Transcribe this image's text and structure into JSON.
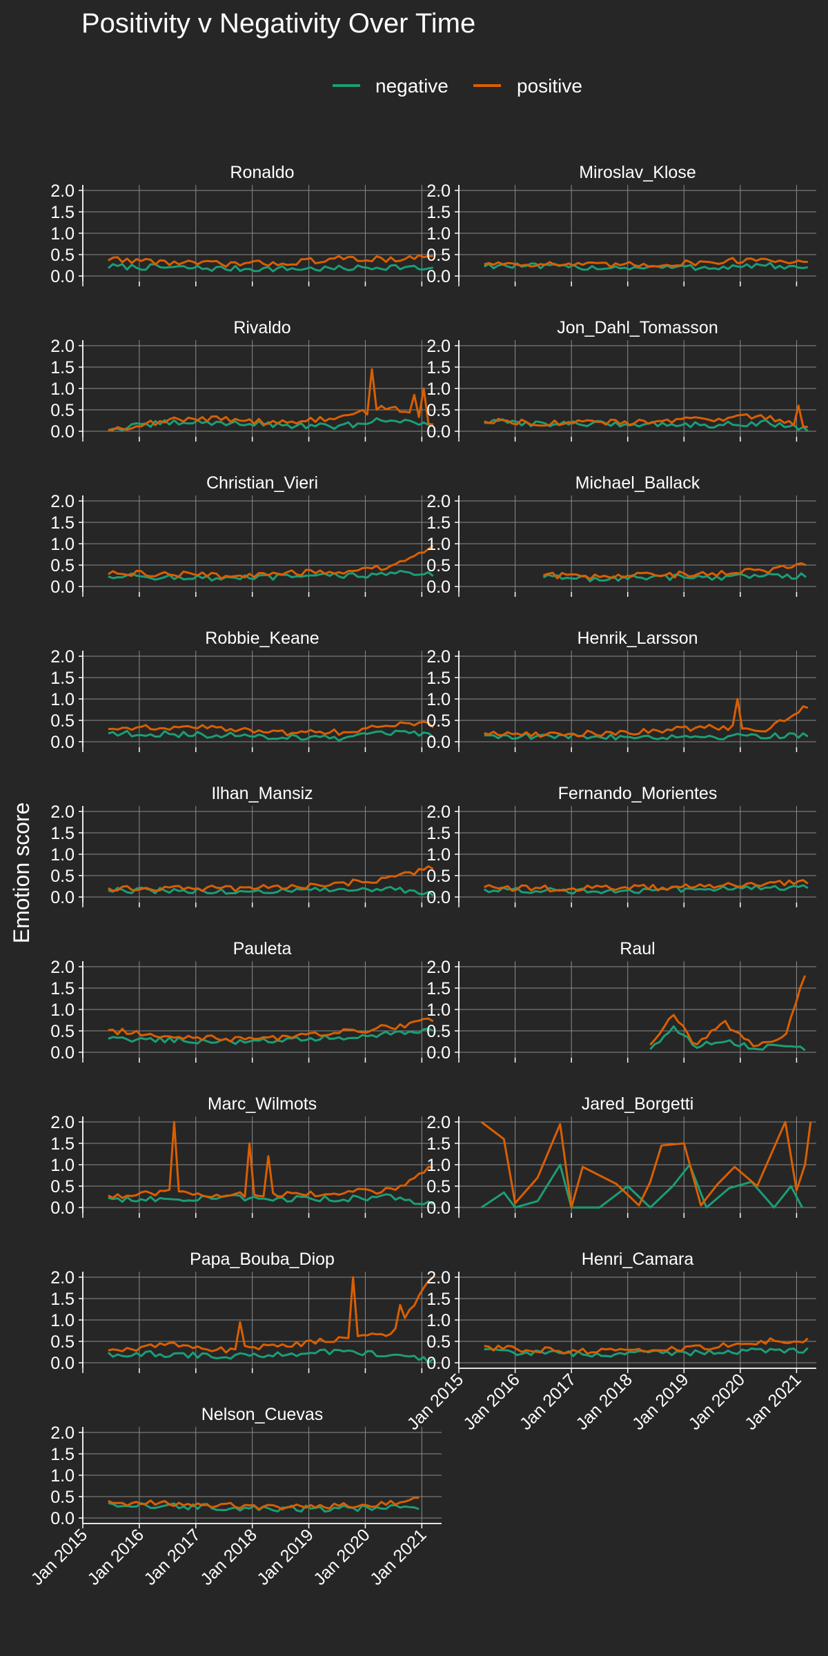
{
  "chart_data": {
    "type": "line",
    "title": "Positivity v Negativity Over Time",
    "ylabel": "Emotion score",
    "xlabel": "",
    "ylim": [
      0,
      2
    ],
    "y_ticks": [
      "0.0",
      "0.5",
      "1.0",
      "1.5",
      "2.0"
    ],
    "x_ticks": [
      "Jan 2015",
      "Jan 2016",
      "Jan 2017",
      "Jan 2018",
      "Jan 2019",
      "Jan 2020",
      "Jan 2021"
    ],
    "grid": true,
    "legend": {
      "placement": "top",
      "entries": [
        {
          "name": "negative",
          "color": "#1b9e77"
        },
        {
          "name": "positive",
          "color": "#d95f02"
        }
      ]
    },
    "time_range": {
      "start": "2015-06",
      "end": "2021-03",
      "step": "month"
    },
    "facets": [
      {
        "name": "Ronaldo",
        "positive": [
          [
            2015.5,
            0.4
          ],
          [
            2016.5,
            0.32
          ],
          [
            2017.5,
            0.28
          ],
          [
            2018.5,
            0.3
          ],
          [
            2019.5,
            0.4
          ],
          [
            2020.5,
            0.4
          ],
          [
            2021.2,
            0.45
          ]
        ],
        "negative": [
          [
            2015.5,
            0.22
          ],
          [
            2016.5,
            0.2
          ],
          [
            2017.5,
            0.17
          ],
          [
            2018.5,
            0.17
          ],
          [
            2019.5,
            0.17
          ],
          [
            2020.5,
            0.22
          ],
          [
            2021.2,
            0.15
          ]
        ]
      },
      {
        "name": "Miroslav_Klose",
        "positive": [
          [
            2015.5,
            0.3
          ],
          [
            2016.5,
            0.28
          ],
          [
            2017.5,
            0.25
          ],
          [
            2018.5,
            0.27
          ],
          [
            2019.5,
            0.33
          ],
          [
            2020.5,
            0.4
          ],
          [
            2021.2,
            0.3
          ]
        ],
        "negative": [
          [
            2015.5,
            0.25
          ],
          [
            2016.5,
            0.22
          ],
          [
            2017.5,
            0.2
          ],
          [
            2018.5,
            0.2
          ],
          [
            2019.5,
            0.2
          ],
          [
            2020.5,
            0.25
          ],
          [
            2021.2,
            0.15
          ]
        ]
      },
      {
        "name": "Rivaldo",
        "positive": [
          [
            2015.5,
            0.05
          ],
          [
            2016.5,
            0.25
          ],
          [
            2017.5,
            0.3
          ],
          [
            2018.5,
            0.2
          ],
          [
            2019.5,
            0.3
          ],
          [
            2020.5,
            0.6
          ],
          [
            2021.2,
            0.1
          ]
        ],
        "negative": [
          [
            2015.5,
            0.05
          ],
          [
            2016.5,
            0.2
          ],
          [
            2017.5,
            0.2
          ],
          [
            2018.5,
            0.15
          ],
          [
            2019.5,
            0.1
          ],
          [
            2020.5,
            0.3
          ],
          [
            2021.2,
            0.1
          ]
        ],
        "spikes": {
          "positive": [
            [
              2020.15,
              1.45
            ],
            [
              2020.85,
              0.85
            ],
            [
              2021.05,
              1.0
            ]
          ]
        }
      },
      {
        "name": "Jon_Dahl_Tomasson",
        "positive": [
          [
            2015.5,
            0.25
          ],
          [
            2016.5,
            0.2
          ],
          [
            2017.5,
            0.2
          ],
          [
            2018.5,
            0.22
          ],
          [
            2019.5,
            0.3
          ],
          [
            2020.5,
            0.35
          ],
          [
            2021.2,
            0.05
          ]
        ],
        "negative": [
          [
            2015.5,
            0.22
          ],
          [
            2016.5,
            0.18
          ],
          [
            2017.5,
            0.17
          ],
          [
            2018.5,
            0.17
          ],
          [
            2019.5,
            0.15
          ],
          [
            2020.5,
            0.2
          ],
          [
            2021.2,
            0.05
          ]
        ],
        "spikes": {
          "positive": [
            [
              2021.05,
              0.6
            ]
          ]
        }
      },
      {
        "name": "Christian_Vieri",
        "positive": [
          [
            2015.5,
            0.3
          ],
          [
            2016.5,
            0.3
          ],
          [
            2017.5,
            0.25
          ],
          [
            2018.5,
            0.3
          ],
          [
            2019.5,
            0.35
          ],
          [
            2020.5,
            0.45
          ],
          [
            2021.2,
            0.9
          ]
        ],
        "negative": [
          [
            2015.5,
            0.25
          ],
          [
            2016.5,
            0.22
          ],
          [
            2017.5,
            0.18
          ],
          [
            2018.5,
            0.22
          ],
          [
            2019.5,
            0.25
          ],
          [
            2020.5,
            0.3
          ],
          [
            2021.2,
            0.3
          ]
        ]
      },
      {
        "name": "Michael_Ballack",
        "start": 2016.5,
        "positive": [
          [
            2016.5,
            0.27
          ],
          [
            2017.5,
            0.22
          ],
          [
            2018.5,
            0.27
          ],
          [
            2019.5,
            0.3
          ],
          [
            2020.5,
            0.38
          ],
          [
            2021.2,
            0.55
          ]
        ],
        "negative": [
          [
            2016.5,
            0.22
          ],
          [
            2017.5,
            0.18
          ],
          [
            2018.5,
            0.22
          ],
          [
            2019.5,
            0.22
          ],
          [
            2020.5,
            0.25
          ],
          [
            2021.2,
            0.25
          ]
        ]
      },
      {
        "name": "Robbie_Keane",
        "positive": [
          [
            2015.5,
            0.3
          ],
          [
            2016.5,
            0.35
          ],
          [
            2017.5,
            0.3
          ],
          [
            2018.5,
            0.22
          ],
          [
            2019.5,
            0.22
          ],
          [
            2020.5,
            0.4
          ],
          [
            2021.2,
            0.4
          ]
        ],
        "negative": [
          [
            2015.5,
            0.2
          ],
          [
            2016.5,
            0.18
          ],
          [
            2017.5,
            0.15
          ],
          [
            2018.5,
            0.12
          ],
          [
            2019.5,
            0.08
          ],
          [
            2020.5,
            0.2
          ],
          [
            2021.2,
            0.15
          ]
        ]
      },
      {
        "name": "Henrik_Larsson",
        "positive": [
          [
            2015.5,
            0.2
          ],
          [
            2016.5,
            0.18
          ],
          [
            2017.5,
            0.2
          ],
          [
            2018.5,
            0.25
          ],
          [
            2019.5,
            0.35
          ],
          [
            2020.5,
            0.3
          ],
          [
            2021.2,
            0.85
          ]
        ],
        "negative": [
          [
            2015.5,
            0.15
          ],
          [
            2016.5,
            0.12
          ],
          [
            2017.5,
            0.12
          ],
          [
            2018.5,
            0.12
          ],
          [
            2019.5,
            0.12
          ],
          [
            2020.5,
            0.15
          ],
          [
            2021.2,
            0.15
          ]
        ],
        "spikes": {
          "positive": [
            [
              2019.95,
              1.0
            ]
          ]
        }
      },
      {
        "name": "Ilhan_Mansiz",
        "positive": [
          [
            2015.5,
            0.2
          ],
          [
            2016.5,
            0.2
          ],
          [
            2017.5,
            0.2
          ],
          [
            2018.5,
            0.22
          ],
          [
            2019.5,
            0.3
          ],
          [
            2020.5,
            0.45
          ],
          [
            2021.2,
            0.7
          ]
        ],
        "negative": [
          [
            2015.5,
            0.15
          ],
          [
            2016.5,
            0.15
          ],
          [
            2017.5,
            0.12
          ],
          [
            2018.5,
            0.15
          ],
          [
            2019.5,
            0.15
          ],
          [
            2020.5,
            0.2
          ],
          [
            2021.2,
            0.05
          ]
        ]
      },
      {
        "name": "Fernando_Morientes",
        "positive": [
          [
            2015.5,
            0.22
          ],
          [
            2016.5,
            0.2
          ],
          [
            2017.5,
            0.2
          ],
          [
            2018.5,
            0.22
          ],
          [
            2019.5,
            0.27
          ],
          [
            2020.5,
            0.3
          ],
          [
            2021.2,
            0.35
          ]
        ],
        "negative": [
          [
            2015.5,
            0.17
          ],
          [
            2016.5,
            0.15
          ],
          [
            2017.5,
            0.15
          ],
          [
            2018.5,
            0.17
          ],
          [
            2019.5,
            0.2
          ],
          [
            2020.5,
            0.22
          ],
          [
            2021.2,
            0.22
          ]
        ]
      },
      {
        "name": "Pauleta",
        "positive": [
          [
            2015.5,
            0.5
          ],
          [
            2016.5,
            0.4
          ],
          [
            2017.5,
            0.3
          ],
          [
            2018.5,
            0.35
          ],
          [
            2019.5,
            0.45
          ],
          [
            2020.5,
            0.6
          ],
          [
            2021.2,
            0.75
          ]
        ],
        "negative": [
          [
            2015.5,
            0.3
          ],
          [
            2016.5,
            0.3
          ],
          [
            2017.5,
            0.25
          ],
          [
            2018.5,
            0.28
          ],
          [
            2019.5,
            0.35
          ],
          [
            2020.5,
            0.45
          ],
          [
            2021.2,
            0.5
          ]
        ]
      },
      {
        "name": "Raul",
        "start": 2018.4,
        "positive": [
          [
            2018.4,
            0.15
          ],
          [
            2018.8,
            0.85
          ],
          [
            2019.2,
            0.2
          ],
          [
            2019.7,
            0.7
          ],
          [
            2020.3,
            0.15
          ],
          [
            2020.8,
            0.4
          ],
          [
            2021.2,
            2.0
          ]
        ],
        "negative": [
          [
            2018.4,
            0.05
          ],
          [
            2018.8,
            0.6
          ],
          [
            2019.2,
            0.15
          ],
          [
            2019.7,
            0.3
          ],
          [
            2020.3,
            0.1
          ],
          [
            2020.8,
            0.2
          ],
          [
            2021.2,
            0.0
          ]
        ]
      },
      {
        "name": "Marc_Wilmots",
        "positive": [
          [
            2015.5,
            0.25
          ],
          [
            2016.5,
            0.35
          ],
          [
            2017.5,
            0.3
          ],
          [
            2018.5,
            0.3
          ],
          [
            2019.5,
            0.35
          ],
          [
            2020.5,
            0.4
          ],
          [
            2021.2,
            0.95
          ]
        ],
        "negative": [
          [
            2015.5,
            0.2
          ],
          [
            2016.5,
            0.2
          ],
          [
            2017.5,
            0.25
          ],
          [
            2018.5,
            0.2
          ],
          [
            2019.5,
            0.2
          ],
          [
            2020.5,
            0.25
          ],
          [
            2021.2,
            0.05
          ]
        ],
        "spikes": {
          "positive": [
            [
              2016.65,
              2.0
            ],
            [
              2017.95,
              1.5
            ],
            [
              2018.25,
              1.2
            ]
          ]
        }
      },
      {
        "name": "Jared_Borgetti",
        "sparse": true,
        "positive": [
          [
            2015.4,
            2.0
          ],
          [
            2015.8,
            1.6
          ],
          [
            2016.0,
            0.1
          ],
          [
            2016.4,
            0.7
          ],
          [
            2016.8,
            1.95
          ],
          [
            2017.0,
            0.0
          ],
          [
            2017.2,
            0.95
          ],
          [
            2017.8,
            0.55
          ],
          [
            2018.2,
            0.05
          ],
          [
            2018.4,
            0.6
          ],
          [
            2018.6,
            1.45
          ],
          [
            2019.0,
            1.5
          ],
          [
            2019.3,
            0.05
          ],
          [
            2019.6,
            0.55
          ],
          [
            2019.9,
            0.95
          ],
          [
            2020.3,
            0.5
          ],
          [
            2020.6,
            1.4
          ],
          [
            2020.8,
            2.0
          ],
          [
            2021.0,
            0.4
          ],
          [
            2021.15,
            1.0
          ],
          [
            2021.25,
            2.0
          ]
        ],
        "negative": [
          [
            2015.4,
            0.0
          ],
          [
            2015.8,
            0.35
          ],
          [
            2016.0,
            0.0
          ],
          [
            2016.4,
            0.15
          ],
          [
            2016.8,
            1.0
          ],
          [
            2017.0,
            0.0
          ],
          [
            2017.5,
            0.0
          ],
          [
            2018.0,
            0.5
          ],
          [
            2018.4,
            0.0
          ],
          [
            2018.8,
            0.5
          ],
          [
            2019.1,
            1.0
          ],
          [
            2019.4,
            0.0
          ],
          [
            2019.8,
            0.45
          ],
          [
            2020.2,
            0.6
          ],
          [
            2020.6,
            0.0
          ],
          [
            2020.9,
            0.5
          ],
          [
            2021.1,
            0.0
          ]
        ]
      },
      {
        "name": "Papa_Bouba_Diop",
        "positive": [
          [
            2015.5,
            0.25
          ],
          [
            2016.5,
            0.45
          ],
          [
            2017.5,
            0.3
          ],
          [
            2018.5,
            0.4
          ],
          [
            2019.5,
            0.55
          ],
          [
            2020.5,
            0.7
          ],
          [
            2021.2,
            2.0
          ]
        ],
        "negative": [
          [
            2015.5,
            0.2
          ],
          [
            2016.5,
            0.2
          ],
          [
            2017.5,
            0.15
          ],
          [
            2018.5,
            0.2
          ],
          [
            2019.5,
            0.25
          ],
          [
            2020.5,
            0.2
          ],
          [
            2021.2,
            0.05
          ]
        ],
        "spikes": {
          "positive": [
            [
              2019.75,
              2.0
            ],
            [
              2020.6,
              1.35
            ],
            [
              2017.8,
              0.95
            ]
          ]
        }
      },
      {
        "name": "Henri_Camara",
        "positive": [
          [
            2015.5,
            0.35
          ],
          [
            2016.5,
            0.3
          ],
          [
            2017.5,
            0.27
          ],
          [
            2018.5,
            0.3
          ],
          [
            2019.5,
            0.38
          ],
          [
            2020.5,
            0.5
          ],
          [
            2021.2,
            0.55
          ]
        ],
        "negative": [
          [
            2015.5,
            0.27
          ],
          [
            2016.5,
            0.22
          ],
          [
            2017.5,
            0.2
          ],
          [
            2018.5,
            0.22
          ],
          [
            2019.5,
            0.25
          ],
          [
            2020.5,
            0.3
          ],
          [
            2021.2,
            0.3
          ]
        ]
      },
      {
        "name": "Nelson_Cuevas",
        "positive": [
          [
            2015.5,
            0.35
          ],
          [
            2016.5,
            0.35
          ],
          [
            2017.5,
            0.3
          ],
          [
            2018.5,
            0.25
          ],
          [
            2019.5,
            0.28
          ],
          [
            2020.5,
            0.35
          ],
          [
            2021.0,
            0.45
          ]
        ],
        "negative": [
          [
            2015.5,
            0.3
          ],
          [
            2016.5,
            0.28
          ],
          [
            2017.5,
            0.25
          ],
          [
            2018.5,
            0.22
          ],
          [
            2019.5,
            0.22
          ],
          [
            2020.5,
            0.25
          ],
          [
            2021.0,
            0.25
          ]
        ]
      }
    ]
  }
}
